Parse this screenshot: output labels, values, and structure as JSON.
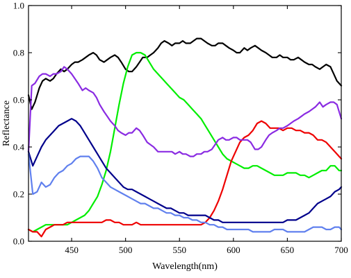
{
  "chart_data": {
    "type": "line",
    "xlabel": "Wavelength(nm)",
    "ylabel": "Reflectance",
    "xlim": [
      410,
      700
    ],
    "ylim": [
      0,
      1.0
    ],
    "x_ticks": [
      450,
      500,
      550,
      600,
      650,
      700
    ],
    "x_tick_labels": [
      "450",
      "500",
      "550",
      "600",
      "650",
      "700"
    ],
    "y_ticks": [
      0.0,
      0.2,
      0.4,
      0.6,
      0.8,
      1.0
    ],
    "y_tick_labels": [
      "0.0",
      "0.2",
      "0.4",
      "0.6",
      "0.8",
      "1.0"
    ],
    "grid": false,
    "series": [
      {
        "color": "#000000",
        "x": [
          410,
          413,
          416,
          420,
          423,
          426,
          430,
          433,
          436,
          440,
          443,
          446,
          450,
          453,
          456,
          460,
          463,
          466,
          470,
          473,
          476,
          480,
          483,
          486,
          490,
          493,
          496,
          500,
          503,
          506,
          510,
          513,
          516,
          520,
          523,
          526,
          530,
          533,
          536,
          540,
          543,
          546,
          550,
          553,
          556,
          560,
          563,
          566,
          570,
          573,
          576,
          580,
          583,
          586,
          590,
          593,
          596,
          600,
          603,
          606,
          610,
          613,
          616,
          620,
          623,
          626,
          630,
          633,
          636,
          640,
          643,
          646,
          650,
          653,
          656,
          660,
          663,
          666,
          670,
          673,
          676,
          680,
          683,
          686,
          690,
          693,
          696,
          700
        ],
        "y": [
          0.62,
          0.56,
          0.59,
          0.65,
          0.68,
          0.69,
          0.68,
          0.69,
          0.71,
          0.73,
          0.72,
          0.73,
          0.75,
          0.76,
          0.76,
          0.77,
          0.78,
          0.79,
          0.8,
          0.79,
          0.77,
          0.76,
          0.77,
          0.78,
          0.79,
          0.78,
          0.76,
          0.73,
          0.72,
          0.72,
          0.74,
          0.76,
          0.78,
          0.78,
          0.79,
          0.8,
          0.82,
          0.84,
          0.85,
          0.84,
          0.83,
          0.84,
          0.84,
          0.85,
          0.84,
          0.84,
          0.85,
          0.86,
          0.86,
          0.85,
          0.84,
          0.83,
          0.83,
          0.84,
          0.84,
          0.83,
          0.82,
          0.81,
          0.8,
          0.8,
          0.82,
          0.81,
          0.82,
          0.83,
          0.82,
          0.81,
          0.8,
          0.79,
          0.78,
          0.78,
          0.79,
          0.78,
          0.78,
          0.77,
          0.77,
          0.78,
          0.77,
          0.76,
          0.75,
          0.75,
          0.74,
          0.73,
          0.74,
          0.75,
          0.74,
          0.71,
          0.68,
          0.66
        ]
      },
      {
        "color": "#00ee00",
        "x": [
          410,
          414,
          418,
          422,
          426,
          430,
          434,
          438,
          442,
          446,
          450,
          454,
          458,
          462,
          466,
          470,
          474,
          478,
          482,
          486,
          490,
          494,
          498,
          502,
          506,
          510,
          514,
          518,
          522,
          526,
          530,
          534,
          538,
          542,
          546,
          550,
          554,
          558,
          562,
          566,
          570,
          574,
          578,
          582,
          586,
          590,
          594,
          598,
          602,
          606,
          610,
          614,
          618,
          622,
          626,
          630,
          634,
          638,
          642,
          646,
          650,
          654,
          658,
          662,
          666,
          670,
          674,
          678,
          682,
          686,
          690,
          694,
          698,
          700
        ],
        "y": [
          0.05,
          0.04,
          0.05,
          0.06,
          0.07,
          0.07,
          0.07,
          0.07,
          0.07,
          0.07,
          0.08,
          0.09,
          0.1,
          0.11,
          0.13,
          0.16,
          0.19,
          0.24,
          0.3,
          0.38,
          0.48,
          0.58,
          0.67,
          0.74,
          0.79,
          0.8,
          0.8,
          0.79,
          0.76,
          0.73,
          0.71,
          0.69,
          0.67,
          0.65,
          0.63,
          0.61,
          0.6,
          0.58,
          0.56,
          0.54,
          0.52,
          0.49,
          0.46,
          0.43,
          0.4,
          0.37,
          0.35,
          0.34,
          0.33,
          0.32,
          0.31,
          0.31,
          0.32,
          0.32,
          0.31,
          0.3,
          0.29,
          0.28,
          0.28,
          0.28,
          0.29,
          0.29,
          0.29,
          0.28,
          0.28,
          0.27,
          0.28,
          0.29,
          0.3,
          0.3,
          0.32,
          0.32,
          0.3,
          0.3
        ]
      },
      {
        "color": "#ee0000",
        "x": [
          410,
          414,
          418,
          422,
          426,
          430,
          434,
          438,
          442,
          446,
          450,
          454,
          458,
          462,
          466,
          470,
          474,
          478,
          482,
          486,
          490,
          494,
          498,
          502,
          506,
          510,
          514,
          518,
          522,
          526,
          530,
          534,
          538,
          542,
          546,
          550,
          554,
          558,
          562,
          566,
          570,
          574,
          578,
          582,
          586,
          590,
          594,
          598,
          602,
          606,
          610,
          614,
          618,
          622,
          626,
          630,
          634,
          638,
          642,
          646,
          650,
          654,
          658,
          662,
          666,
          670,
          674,
          678,
          682,
          686,
          690,
          694,
          698,
          700
        ],
        "y": [
          0.05,
          0.04,
          0.04,
          0.02,
          0.05,
          0.06,
          0.07,
          0.07,
          0.07,
          0.08,
          0.08,
          0.08,
          0.08,
          0.08,
          0.08,
          0.08,
          0.08,
          0.08,
          0.09,
          0.09,
          0.08,
          0.08,
          0.07,
          0.07,
          0.07,
          0.08,
          0.07,
          0.07,
          0.07,
          0.07,
          0.07,
          0.07,
          0.07,
          0.07,
          0.07,
          0.07,
          0.07,
          0.07,
          0.07,
          0.07,
          0.07,
          0.08,
          0.1,
          0.13,
          0.17,
          0.22,
          0.28,
          0.34,
          0.38,
          0.42,
          0.44,
          0.45,
          0.47,
          0.5,
          0.51,
          0.5,
          0.48,
          0.48,
          0.48,
          0.47,
          0.48,
          0.48,
          0.47,
          0.47,
          0.46,
          0.46,
          0.45,
          0.43,
          0.43,
          0.42,
          0.4,
          0.38,
          0.36,
          0.35
        ]
      },
      {
        "color": "#8a2be2",
        "x": [
          410,
          413,
          416,
          420,
          423,
          426,
          430,
          433,
          436,
          440,
          443,
          446,
          450,
          453,
          456,
          460,
          463,
          466,
          470,
          473,
          476,
          480,
          483,
          486,
          490,
          493,
          496,
          500,
          503,
          506,
          510,
          513,
          516,
          520,
          523,
          526,
          530,
          533,
          536,
          540,
          543,
          546,
          550,
          553,
          556,
          560,
          563,
          566,
          570,
          573,
          576,
          580,
          583,
          586,
          590,
          593,
          596,
          600,
          603,
          606,
          610,
          613,
          616,
          620,
          623,
          626,
          630,
          633,
          636,
          640,
          643,
          646,
          650,
          653,
          656,
          660,
          663,
          666,
          670,
          673,
          676,
          680,
          683,
          686,
          690,
          693,
          696,
          700
        ],
        "y": [
          0.38,
          0.66,
          0.67,
          0.7,
          0.71,
          0.71,
          0.7,
          0.71,
          0.71,
          0.72,
          0.74,
          0.73,
          0.71,
          0.69,
          0.67,
          0.64,
          0.65,
          0.64,
          0.63,
          0.61,
          0.58,
          0.55,
          0.53,
          0.51,
          0.49,
          0.47,
          0.46,
          0.45,
          0.46,
          0.46,
          0.48,
          0.47,
          0.45,
          0.42,
          0.41,
          0.4,
          0.38,
          0.38,
          0.38,
          0.38,
          0.38,
          0.37,
          0.38,
          0.37,
          0.37,
          0.36,
          0.36,
          0.37,
          0.37,
          0.38,
          0.38,
          0.39,
          0.41,
          0.43,
          0.44,
          0.43,
          0.43,
          0.44,
          0.44,
          0.43,
          0.43,
          0.43,
          0.42,
          0.39,
          0.39,
          0.4,
          0.43,
          0.45,
          0.46,
          0.47,
          0.48,
          0.48,
          0.49,
          0.5,
          0.51,
          0.52,
          0.53,
          0.54,
          0.55,
          0.56,
          0.57,
          0.59,
          0.57,
          0.58,
          0.59,
          0.59,
          0.58,
          0.52
        ]
      },
      {
        "color": "#00008b",
        "x": [
          410,
          414,
          418,
          422,
          426,
          430,
          434,
          438,
          442,
          446,
          450,
          454,
          458,
          462,
          466,
          470,
          474,
          478,
          482,
          486,
          490,
          494,
          498,
          502,
          506,
          510,
          514,
          518,
          522,
          526,
          530,
          534,
          538,
          542,
          546,
          550,
          554,
          558,
          562,
          566,
          570,
          574,
          578,
          582,
          586,
          590,
          594,
          598,
          602,
          606,
          610,
          614,
          618,
          622,
          626,
          630,
          634,
          638,
          642,
          646,
          650,
          654,
          658,
          662,
          666,
          670,
          674,
          678,
          682,
          686,
          690,
          694,
          698,
          700
        ],
        "y": [
          0.38,
          0.32,
          0.36,
          0.4,
          0.43,
          0.45,
          0.47,
          0.49,
          0.5,
          0.51,
          0.52,
          0.51,
          0.49,
          0.46,
          0.43,
          0.4,
          0.37,
          0.34,
          0.31,
          0.29,
          0.27,
          0.25,
          0.23,
          0.22,
          0.22,
          0.21,
          0.2,
          0.19,
          0.18,
          0.17,
          0.16,
          0.15,
          0.14,
          0.14,
          0.13,
          0.12,
          0.12,
          0.11,
          0.11,
          0.11,
          0.11,
          0.11,
          0.1,
          0.09,
          0.09,
          0.08,
          0.08,
          0.08,
          0.08,
          0.08,
          0.08,
          0.08,
          0.08,
          0.08,
          0.08,
          0.08,
          0.08,
          0.08,
          0.08,
          0.08,
          0.09,
          0.09,
          0.09,
          0.1,
          0.11,
          0.12,
          0.14,
          0.16,
          0.17,
          0.18,
          0.19,
          0.21,
          0.22,
          0.23
        ]
      },
      {
        "color": "#6080ee",
        "x": [
          410,
          414,
          418,
          422,
          426,
          430,
          434,
          438,
          442,
          446,
          450,
          454,
          458,
          462,
          466,
          470,
          474,
          478,
          482,
          486,
          490,
          494,
          498,
          502,
          506,
          510,
          514,
          518,
          522,
          526,
          530,
          534,
          538,
          542,
          546,
          550,
          554,
          558,
          562,
          566,
          570,
          574,
          578,
          582,
          586,
          590,
          594,
          598,
          602,
          606,
          610,
          614,
          618,
          622,
          626,
          630,
          634,
          638,
          642,
          646,
          650,
          654,
          658,
          662,
          666,
          670,
          674,
          678,
          682,
          686,
          690,
          694,
          698,
          700
        ],
        "y": [
          0.37,
          0.2,
          0.21,
          0.25,
          0.23,
          0.24,
          0.27,
          0.29,
          0.3,
          0.32,
          0.33,
          0.35,
          0.36,
          0.36,
          0.36,
          0.34,
          0.31,
          0.27,
          0.25,
          0.23,
          0.22,
          0.21,
          0.2,
          0.19,
          0.18,
          0.17,
          0.16,
          0.16,
          0.15,
          0.14,
          0.14,
          0.13,
          0.12,
          0.12,
          0.11,
          0.11,
          0.1,
          0.1,
          0.09,
          0.09,
          0.08,
          0.08,
          0.07,
          0.07,
          0.06,
          0.06,
          0.05,
          0.05,
          0.05,
          0.05,
          0.05,
          0.05,
          0.04,
          0.04,
          0.04,
          0.04,
          0.04,
          0.05,
          0.05,
          0.05,
          0.04,
          0.04,
          0.04,
          0.04,
          0.04,
          0.05,
          0.06,
          0.06,
          0.06,
          0.05,
          0.05,
          0.06,
          0.06,
          0.05
        ]
      }
    ]
  }
}
